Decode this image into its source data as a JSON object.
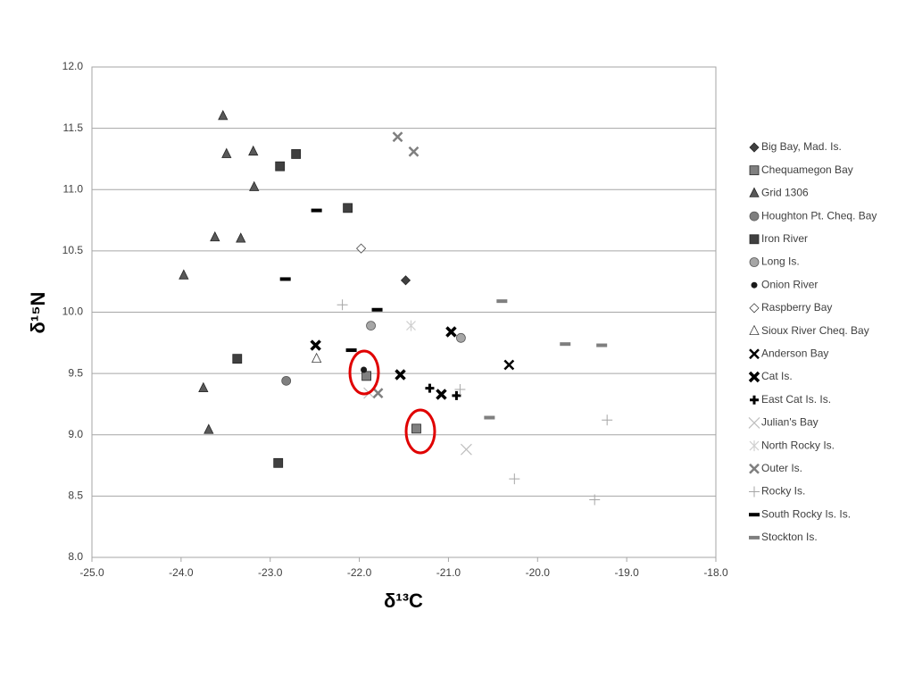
{
  "chart_data": {
    "type": "scatter",
    "xlabel": "δ¹³C",
    "ylabel": "δ¹⁵N",
    "xlim": [
      -25,
      -18
    ],
    "ylim": [
      8,
      12
    ],
    "xticks": [
      {
        "value": -25,
        "label": "-25.0"
      },
      {
        "value": -24,
        "label": "-24.0"
      },
      {
        "value": -23,
        "label": "-23.0"
      },
      {
        "value": -22,
        "label": "-22.0"
      },
      {
        "value": -21,
        "label": "-21.0"
      },
      {
        "value": -20,
        "label": "-20.0"
      },
      {
        "value": -19,
        "label": "-19.0"
      },
      {
        "value": -18,
        "label": "-18.0"
      }
    ],
    "yticks": [
      {
        "value": 8,
        "label": "8.0"
      },
      {
        "value": 8.5,
        "label": "8.5"
      },
      {
        "value": 9,
        "label": "9.0"
      },
      {
        "value": 9.5,
        "label": "9.5"
      },
      {
        "value": 10,
        "label": "10.0"
      },
      {
        "value": 10.5,
        "label": "10.5"
      },
      {
        "value": 11,
        "label": "11.0"
      },
      {
        "value": 11.5,
        "label": "11.5"
      },
      {
        "value": 12,
        "label": "12.0"
      }
    ],
    "grid": true,
    "legend": "right",
    "series": [
      {
        "name": "Big Bay, Mad. Is.",
        "color": "#404040",
        "marker": "diamond",
        "x": [
          -21.48
        ],
        "values": [
          10.26
        ]
      },
      {
        "name": "Chequamegon Bay",
        "color": "#808080",
        "marker": "square",
        "x": [
          -21.92,
          -21.36
        ],
        "values": [
          9.48,
          9.05
        ]
      },
      {
        "name": "Grid 1306",
        "color": "#595959",
        "marker": "triangle",
        "x": [
          -23.53,
          -23.49,
          -23.19,
          -23.18,
          -23.62,
          -23.33,
          -23.97,
          -23.75,
          -23.69
        ],
        "values": [
          11.6,
          11.29,
          11.31,
          11.02,
          10.61,
          10.6,
          10.3,
          9.38,
          9.04
        ]
      },
      {
        "name": "Houghton Pt. Cheq. Bay",
        "color": "#7f7f7f",
        "marker": "circle",
        "x": [
          -22.82
        ],
        "values": [
          9.44
        ]
      },
      {
        "name": "Iron River",
        "color": "#404040",
        "marker": "square",
        "x": [
          -22.89,
          -22.71,
          -22.13,
          -23.37,
          -22.91
        ],
        "values": [
          11.19,
          11.29,
          10.85,
          9.62,
          8.77
        ]
      },
      {
        "name": "Long Is.",
        "color": "#a6a6a6",
        "marker": "circle",
        "x": [
          -21.87,
          -20.86
        ],
        "values": [
          9.89,
          9.79
        ]
      },
      {
        "name": "Onion River",
        "color": "#1a1a1a",
        "marker": "dot",
        "x": [
          -21.95
        ],
        "values": [
          9.53
        ]
      },
      {
        "name": "Raspberry Bay",
        "color": "#ffffff",
        "marker": "diamond",
        "x": [
          -21.98
        ],
        "values": [
          10.52
        ]
      },
      {
        "name": "Sioux River Cheq. Bay",
        "color": "#ffffff",
        "marker": "triangle",
        "x": [
          -22.48
        ],
        "values": [
          9.62
        ]
      },
      {
        "name": "Anderson Bay",
        "color": "#000000",
        "marker": "x",
        "x": [
          -20.32
        ],
        "values": [
          9.57
        ]
      },
      {
        "name": "Cat Is.",
        "color": "#000000",
        "marker": "x-bold",
        "x": [
          -22.49,
          -21.54,
          -21.08,
          -20.97
        ],
        "values": [
          9.73,
          9.49,
          9.33,
          9.84
        ]
      },
      {
        "name": "East Cat Is. Is.",
        "color": "#000000",
        "marker": "plus-bold",
        "x": [
          -21.21,
          -20.91
        ],
        "values": [
          9.38,
          9.32
        ]
      },
      {
        "name": "Julian's Bay",
        "color": "#bfbfbf",
        "marker": "x-thin",
        "x": [
          -20.8,
          -21.89
        ],
        "values": [
          8.88,
          9.34
        ]
      },
      {
        "name": "North Rocky Is.",
        "color": "#d0d0d0",
        "marker": "asterisk",
        "x": [
          -21.42
        ],
        "values": [
          9.89
        ]
      },
      {
        "name": "Outer Is.",
        "color": "#7f7f7f",
        "marker": "x",
        "x": [
          -21.57,
          -21.39,
          -21.79
        ],
        "values": [
          11.43,
          11.31,
          9.34
        ]
      },
      {
        "name": "Rocky Is.",
        "color": "#a6a6a6",
        "marker": "plus",
        "x": [
          -22.19,
          -20.87,
          -20.26,
          -19.22,
          -19.36
        ],
        "values": [
          10.06,
          9.37,
          8.64,
          9.12,
          8.47
        ]
      },
      {
        "name": "South Rocky Is. Is.",
        "color": "#000000",
        "marker": "dash",
        "x": [
          -22.48,
          -22.83,
          -21.8,
          -22.09
        ],
        "values": [
          10.83,
          10.27,
          10.02,
          9.69
        ]
      },
      {
        "name": "Stockton Is.",
        "color": "#7f7f7f",
        "marker": "dash",
        "x": [
          -20.4,
          -19.69,
          -19.28,
          -20.54
        ],
        "values": [
          10.09,
          9.74,
          9.73,
          9.14
        ]
      }
    ]
  }
}
